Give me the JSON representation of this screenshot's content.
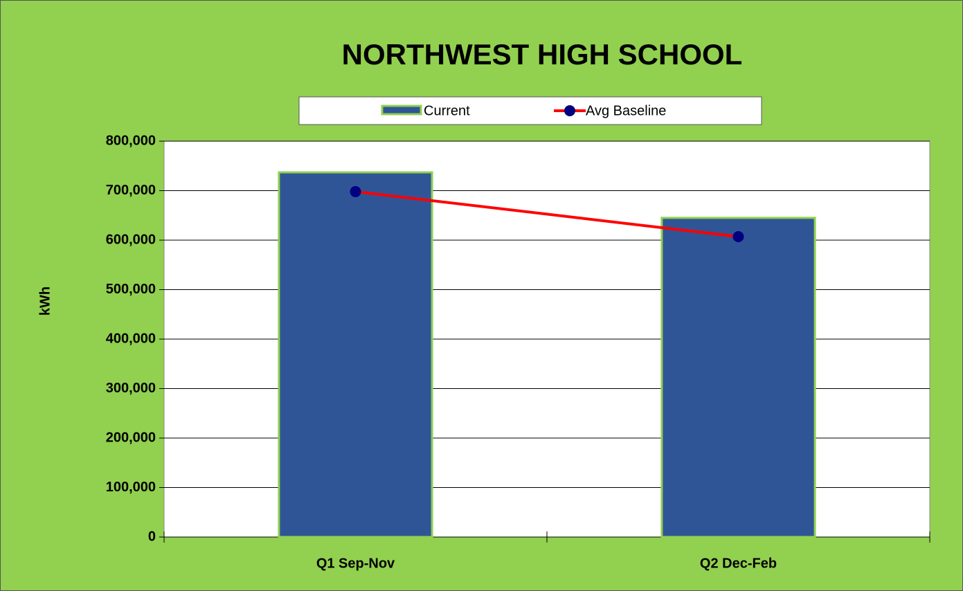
{
  "chart_data": {
    "type": "bar",
    "title": "NORTHWEST HIGH SCHOOL",
    "ylabel": "kWh",
    "categories": [
      "Q1 Sep-Nov",
      "Q2 Dec-Feb"
    ],
    "series": [
      {
        "name": "Current",
        "color": "#2f5597",
        "edgecolor": "#92d050",
        "kind": "bar",
        "values": [
          737000,
          645000
        ]
      },
      {
        "name": "Avg Baseline",
        "color": "#ff0000",
        "marker_color": "#000080",
        "kind": "line",
        "values": [
          698000,
          607000
        ]
      }
    ],
    "ylim": [
      0,
      800000
    ],
    "yticks": [
      0,
      {
        "value": 100000,
        "label": "100,000"
      },
      {
        "value": 200000,
        "label": "200,000"
      },
      {
        "value": 300000,
        "label": "300,000"
      },
      {
        "value": 400000,
        "label": "400,000"
      },
      {
        "value": 500000,
        "label": "500,000"
      },
      {
        "value": 600000,
        "label": "600,000"
      },
      {
        "value": 700000,
        "label": "700,000"
      },
      {
        "value": 800000,
        "label": "800,000"
      }
    ],
    "grid": true,
    "legend": "top"
  }
}
